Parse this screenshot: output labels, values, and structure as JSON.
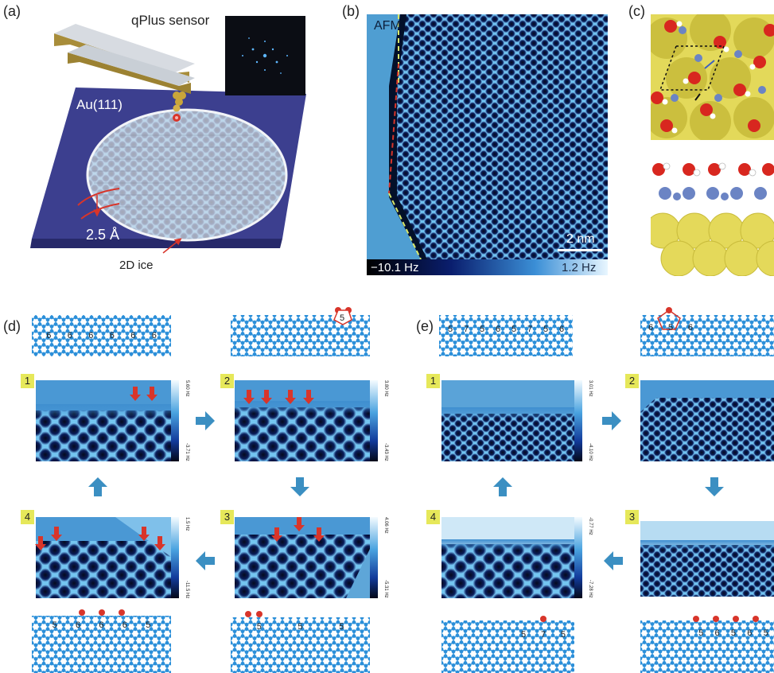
{
  "panels": {
    "a": {
      "label": "(a)",
      "sensor": "qPlus sensor",
      "substrate": "Au(111)",
      "height": "2.5 Å",
      "ice": "2D ice"
    },
    "b": {
      "label": "(b)",
      "mode": "AFM",
      "scale": "2 nm",
      "cb_min": "−10.1 Hz",
      "cb_max": "1.2 Hz"
    },
    "c": {
      "label": "(c)"
    },
    "d": {
      "label": "(d)",
      "steps": [
        "1",
        "2",
        "3",
        "4"
      ],
      "scales": [
        {
          "top": "5.60 Hz",
          "bottom": "-3.71 Hz"
        },
        {
          "top": "3.80 Hz",
          "bottom": "-3.43 Hz"
        },
        {
          "top": "4.06 Hz",
          "bottom": "-5.31 Hz"
        },
        {
          "top": "1.5 Hz",
          "bottom": "-11.5 Hz"
        }
      ],
      "ring_top1": [
        "6",
        "6",
        "6",
        "6",
        "6",
        "6"
      ],
      "ring_top2": [
        "5"
      ],
      "ring_bot3": [
        "5",
        "5",
        "5"
      ],
      "ring_bot4": [
        "5",
        "6",
        "6",
        "6",
        "5"
      ]
    },
    "e": {
      "label": "(e)",
      "steps": [
        "1",
        "2",
        "3",
        "4"
      ],
      "scales": [
        {
          "top": "3.01 Hz",
          "bottom": "-4.10 Hz"
        },
        {
          "top": "-0.77 Hz",
          "bottom": "-7.28 Hz"
        }
      ],
      "ring_top1": [
        "5",
        "7",
        "5",
        "6",
        "5",
        "7",
        "5",
        "6"
      ],
      "ring_top2": [
        "6",
        "5",
        "6"
      ],
      "ring_bot3": [
        "5",
        "6",
        "5",
        "6",
        "5"
      ],
      "ring_bot4": [
        "5",
        "7",
        "5"
      ]
    }
  },
  "colors": {
    "accent_red": "#d8352a",
    "arrow_blue": "#3b8fc2",
    "node_blue": "#2b8fd9",
    "tag_yellow": "#e6e85a"
  }
}
